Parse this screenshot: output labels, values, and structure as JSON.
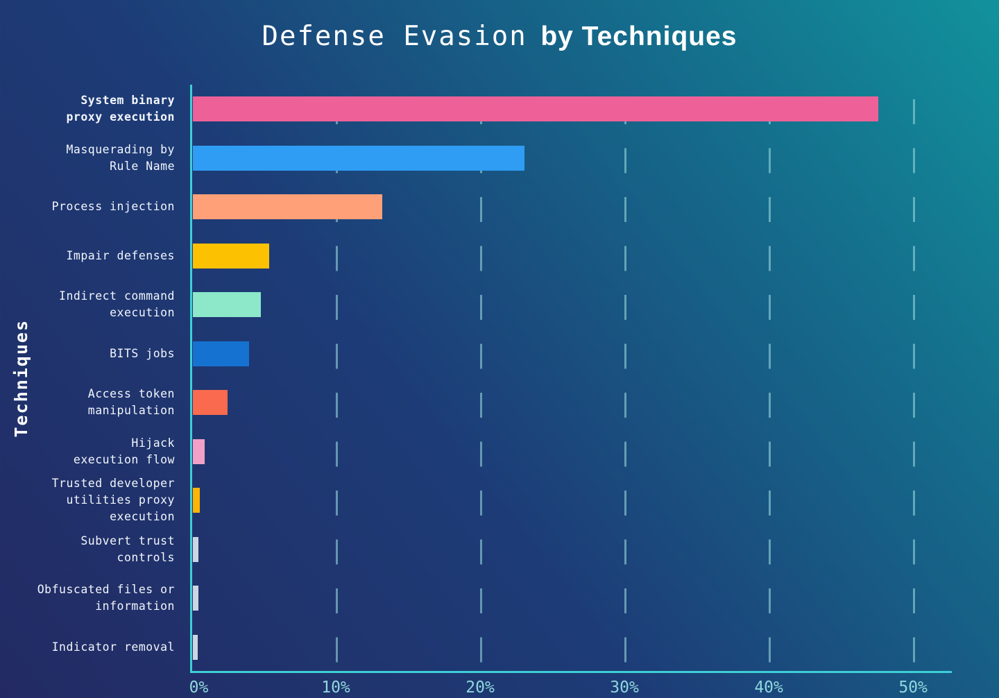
{
  "title": {
    "mono_part": "Defense Evasion",
    "bold_part": "by Techniques"
  },
  "chart_data": {
    "type": "bar",
    "orientation": "horizontal",
    "title": "Defense Evasion by Techniques",
    "ylabel": "Techniques",
    "xlabel": "",
    "x_unit": "%",
    "xlim": [
      0,
      52.3
    ],
    "grid": true,
    "legend": false,
    "gridline_values": [
      10,
      20,
      30,
      40,
      50
    ],
    "x_ticks": [
      {
        "label": "0%",
        "value": 0
      },
      {
        "label": "10%",
        "value": 10
      },
      {
        "label": "20%",
        "value": 20
      },
      {
        "label": "30%",
        "value": 30
      },
      {
        "label": "40%",
        "value": 40
      },
      {
        "label": "50%",
        "value": 50
      }
    ],
    "categories": [
      "System binary\nproxy execution",
      "Masquerading by\nRule Name",
      "Process injection",
      "Impair defenses",
      "Indirect command\nexecution",
      "BITS jobs",
      "Access token\nmanipulation",
      "Hijack\nexecution flow",
      "Trusted developer\nutilities proxy\nexecution",
      "Subvert trust\ncontrols",
      "Obfuscated files or\ninformation",
      "Indicator removal"
    ],
    "values": [
      47.5,
      23.0,
      13.1,
      5.3,
      4.7,
      3.9,
      2.4,
      0.8,
      0.5,
      0.38,
      0.38,
      0.33
    ],
    "bar_colors": [
      "#ee6198",
      "#2e9df3",
      "#ffa078",
      "#fcc100",
      "#8ce8c9",
      "#1672d0",
      "#fa6a4e",
      "#f2a0c8",
      "#fcb505",
      "#ccd6e2",
      "#ccd6e2",
      "#ccd6e2"
    ],
    "emphasized_category": 0,
    "style": {
      "axis_color": "#3ecfd6",
      "grid_color": "rgba(150,214,220,0.6)",
      "tick_color": "#8fd8dc",
      "label_color": "#f2f6fb",
      "background_gradient": [
        "#232a63",
        "#1d3c77",
        "#12929c"
      ]
    }
  }
}
